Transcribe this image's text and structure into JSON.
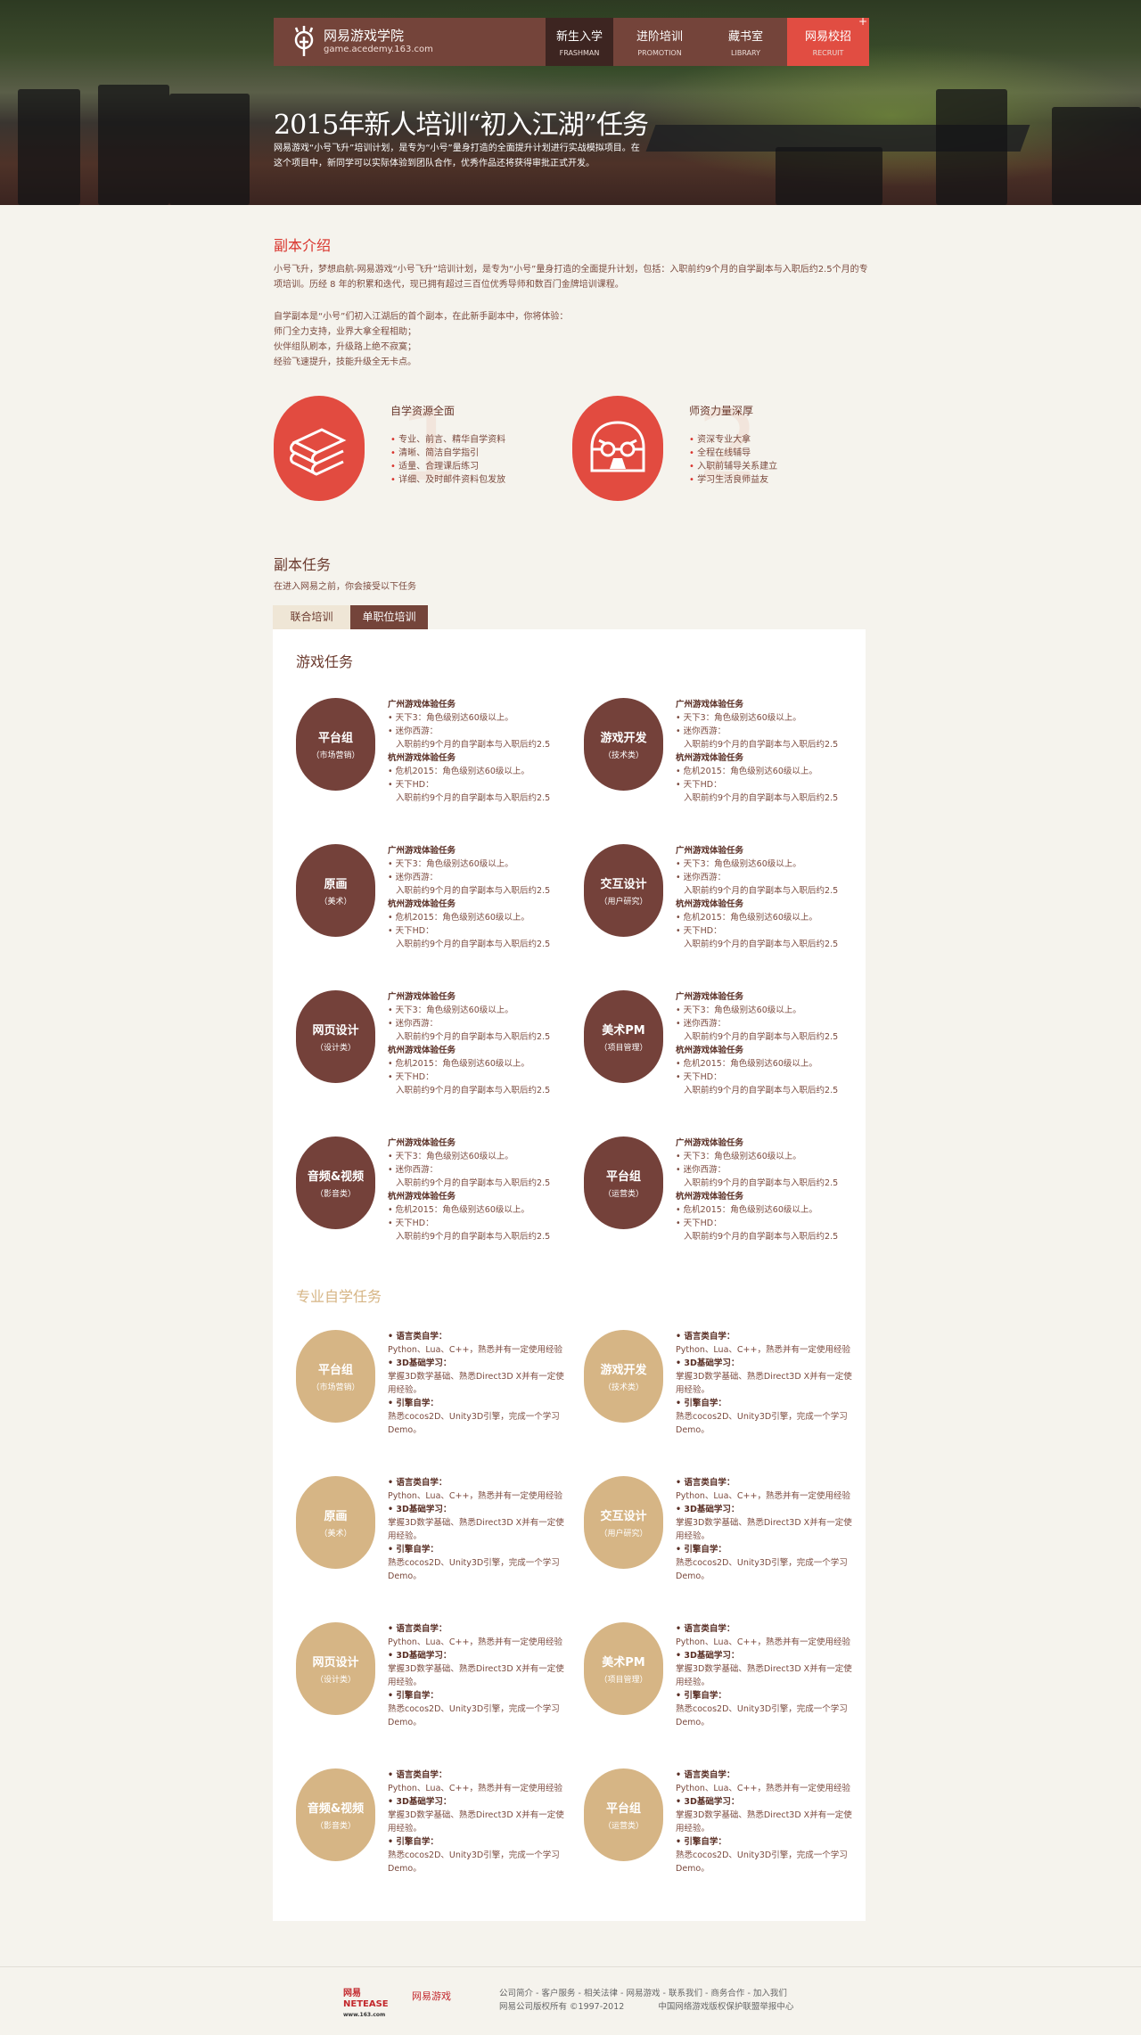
{
  "nav": {
    "logo_title": "网易游戏学院",
    "logo_url": "game.acedemy.163.com",
    "tabs": [
      {
        "cn": "新生入学",
        "en": "FRASHMAN"
      },
      {
        "cn": "进阶培训",
        "en": "PROMOTION"
      },
      {
        "cn": "藏书室",
        "en": "LIBRARY"
      },
      {
        "cn": "网易校招",
        "en": "RECRUIT"
      }
    ],
    "plus": "+"
  },
  "hero": {
    "title": "2015年新人培训“初入江湖”任务",
    "desc": "网易游戏“小号飞升”培训计划，是专为“小号”量身打造的全面提升计划进行实战模拟项目。在这个项目中，新同学可以实际体验到团队合作，优秀作品还将获得审批正式开发。"
  },
  "intro": {
    "title": "副本介绍",
    "p1": "小号飞升，梦想启航-网易游戏“小号飞升”培训计划，是专为“小号”量身打造的全面提升计划，包括：入职前约9个月的自学副本与入职后约2.5个月的专项培训。历经 8 年的积累和迭代，现已拥有超过三百位优秀导师和数百门金牌培训课程。",
    "lines": [
      "自学副本是“小号”们初入江湖后的首个副本，在此新手副本中，你将体验：",
      "师门全力支持，业界大拿全程相助；",
      "伙伴组队刷本，升级路上绝不寂寞；",
      "经验飞速提升，技能升级全无卡点。"
    ]
  },
  "features": [
    {
      "icon": "books-icon",
      "num": "1",
      "title": "自学资源全面",
      "items": [
        "专业、前言、精华自学资料",
        "清晰、简洁自学指引",
        "适量、合理课后练习",
        "详细、及时邮件资料包发放"
      ]
    },
    {
      "icon": "mentor-face-icon",
      "num": "2",
      "title": "师资力量深厚",
      "items": [
        "资深专业大拿",
        "全程在线辅导",
        "入职前辅导关系建立",
        "学习生活良师益友"
      ]
    }
  ],
  "tasks": {
    "title": "副本任务",
    "subtitle": "在进入网易之前，你会接受以下任务",
    "tabs": [
      "联合培训",
      "单职位培训"
    ],
    "active_tab": 1
  },
  "game_tasks": {
    "title": "游戏任务",
    "roles": [
      {
        "name": "平台组",
        "cat": "（市场营销）"
      },
      {
        "name": "游戏开发",
        "cat": "（技术类）"
      },
      {
        "name": "原画",
        "cat": "（美术）"
      },
      {
        "name": "交互设计",
        "cat": "（用户研究）"
      },
      {
        "name": "网页设计",
        "cat": "（设计类）"
      },
      {
        "name": "美术PM",
        "cat": "（项目管理）"
      },
      {
        "name": "音频&视频",
        "cat": "（影音类）"
      },
      {
        "name": "平台组",
        "cat": "（运营类）"
      }
    ],
    "detail": {
      "gz_title": "广州游戏体验任务",
      "gz_1": "天下3：角色级别达60级以上。",
      "gz_2": "迷你西游：",
      "gz_2b": "入职前约9个月的自学副本与入职后约2.5",
      "hz_title": "杭州游戏体验任务",
      "hz_1": "危机2015：角色级别达60级以上。",
      "hz_2": "天下HD：",
      "hz_2b": "入职前约9个月的自学副本与入职后约2.5"
    },
    "color": "#74413a"
  },
  "self_study": {
    "title": "专业自学任务",
    "detail": {
      "lang_title": "语言类自学：",
      "lang": "Python、Lua、C++，熟悉并有一定使用经验",
      "d3_title": "3D基础学习：",
      "d3": "掌握3D数学基础、熟悉Direct3D X并有一定使",
      "d3b": "用经验。",
      "eng_title": "引擎自学：",
      "eng": "熟悉cocos2D、Unity3D引擎，完成一个学习",
      "engb": "Demo。"
    },
    "color": "#d6b585"
  },
  "footer": {
    "logo1": "网易 NETEASE",
    "logo1_sub": "www.163.com",
    "logo2": "网易游戏",
    "links": [
      "公司简介",
      "客户服务",
      "相关法律",
      "网易游戏",
      "联系我们",
      "商务合作",
      "加入我们"
    ],
    "copyright": "网易公司版权所有 ©1997-2012",
    "report": "中国网络游戏版权保护联盟举报中心"
  }
}
